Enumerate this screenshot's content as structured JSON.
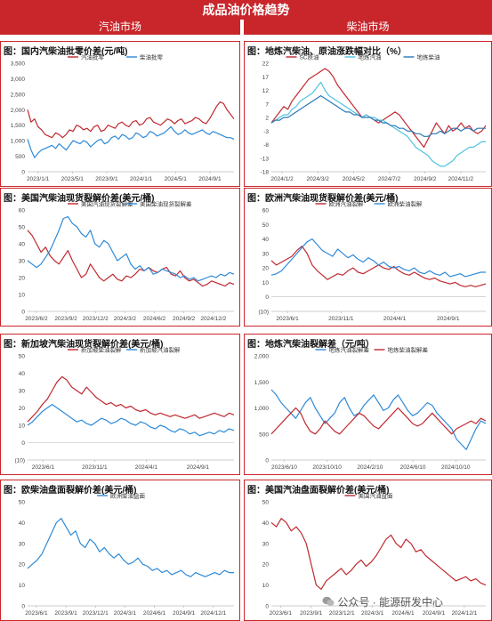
{
  "header": {
    "title": "成品油价格趋势",
    "left_section": "汽油市场",
    "right_section": "柴油市场"
  },
  "watermark": {
    "icon": "wechat-icon",
    "text": "公众号 · 能源研发中心"
  },
  "chart_data": [
    {
      "type": "line",
      "title": "图：国内汽柴油批零价差(元/吨)",
      "x_ticks": [
        "2023/1/1",
        "2023/5/1",
        "2023/9/1",
        "2024/1/1",
        "2024/5/1",
        "2024/9/1"
      ],
      "ylim": [
        0,
        3500
      ],
      "y_ticks": [
        0,
        500,
        1000,
        1500,
        2000,
        2500,
        3000,
        3500
      ],
      "y_tick_labels": [
        "0",
        "500",
        "1,000",
        "1,500",
        "2,000",
        "2,500",
        "3,000",
        "3,500"
      ],
      "legend": "top",
      "series": [
        {
          "name": "汽油批零",
          "color": "#c0282e",
          "values": [
            2000,
            1600,
            1700,
            1450,
            1350,
            1200,
            1150,
            1100,
            1250,
            1200,
            1100,
            1200,
            1350,
            1300,
            1500,
            1450,
            1350,
            1400,
            1300,
            1450,
            1500,
            1300,
            1350,
            1500,
            1450,
            1400,
            1550,
            1600,
            1500,
            1450,
            1600,
            1650,
            1500,
            1550,
            1700,
            1750,
            1600,
            1550,
            1500,
            1600,
            1700,
            1650,
            1550,
            1650,
            1700,
            1550,
            1600,
            1650,
            1750,
            1700,
            1600,
            1550,
            1700,
            1900,
            2100,
            2250,
            2200,
            2000,
            1850,
            1700
          ]
        },
        {
          "name": "柴油批零",
          "color": "#2e8ad8",
          "values": [
            1050,
            700,
            450,
            600,
            700,
            750,
            800,
            850,
            750,
            900,
            800,
            700,
            850,
            1000,
            950,
            900,
            1000,
            950,
            800,
            900,
            1000,
            1050,
            900,
            950,
            1100,
            1150,
            1050,
            1200,
            1150,
            1050,
            1100,
            1250,
            1200,
            1100,
            1150,
            1300,
            1250,
            1150,
            1200,
            1250,
            1350,
            1450,
            1300,
            1200,
            1250,
            1350,
            1250,
            1200,
            1250,
            1300,
            1350,
            1250,
            1200,
            1300,
            1250,
            1200,
            1150,
            1100,
            1100,
            1050
          ]
        }
      ]
    },
    {
      "type": "line",
      "title": "图：地炼汽柴油、原油涨跌幅对比（%）",
      "x_ticks": [
        "2024/1/2",
        "2024/3/2",
        "2024/5/2",
        "2024/7/2",
        "2024/9/2",
        "2024/11/2"
      ],
      "ylim": [
        -18,
        22
      ],
      "y_ticks": [
        -18,
        -13,
        -8,
        -3,
        2,
        7,
        12,
        17,
        22
      ],
      "y_tick_labels": [
        "-18",
        "-13",
        "-8",
        "-3",
        "2",
        "7",
        "12",
        "17",
        "22"
      ],
      "legend": "top",
      "series": [
        {
          "name": "SC原油",
          "color": "#c0282e",
          "values": [
            0,
            2,
            4,
            6,
            5,
            8,
            10,
            12,
            14,
            16,
            17,
            18,
            19,
            20,
            19,
            17,
            14,
            12,
            10,
            8,
            6,
            4,
            2,
            3,
            2,
            1,
            0,
            1,
            2,
            3,
            4,
            3,
            1,
            -1,
            -3,
            -5,
            -7,
            -9,
            -6,
            -3,
            0,
            -2,
            -4,
            -1,
            -3,
            -2,
            0,
            -2,
            -1,
            -3,
            -4,
            -3,
            -1
          ]
        },
        {
          "name": "地炼汽油",
          "color": "#4fc3e0",
          "values": [
            0,
            1,
            2,
            3,
            3,
            5,
            6,
            8,
            9,
            10,
            11,
            13,
            15,
            12,
            10,
            9,
            8,
            7,
            6,
            5,
            4,
            3,
            2,
            3,
            2,
            2,
            1,
            1,
            0,
            -1,
            -2,
            -3,
            -4,
            -5,
            -7,
            -9,
            -10,
            -11,
            -12,
            -14,
            -15,
            -16,
            -16,
            -15,
            -14,
            -12,
            -11,
            -10,
            -9,
            -9,
            -8,
            -7,
            -7
          ]
        },
        {
          "name": "地炼柴油",
          "color": "#2a78b8",
          "values": [
            0,
            1,
            1,
            2,
            2,
            3,
            4,
            5,
            6,
            7,
            8,
            9,
            10,
            9,
            8,
            7,
            6,
            5,
            4,
            4,
            3,
            3,
            2,
            2,
            2,
            1,
            1,
            0,
            0,
            -1,
            -1,
            -2,
            -2,
            -3,
            -3,
            -4,
            -4,
            -5,
            -5,
            -4,
            -4,
            -3,
            -4,
            -3,
            -2,
            -2,
            -3,
            -2,
            -2,
            -3,
            -2,
            -2,
            -2
          ]
        }
      ]
    },
    {
      "type": "line",
      "title": "图：美国汽柴油现货裂解价差(美元/桶)",
      "x_ticks": [
        "2023/6/2",
        "2023/9/2",
        "2023/12/2",
        "2024/3/2",
        "2024/6/2",
        "2024/9/2",
        "2024/12/2"
      ],
      "ylim": [
        0,
        60
      ],
      "y_ticks": [
        0,
        10,
        20,
        30,
        40,
        50,
        60
      ],
      "y_tick_labels": [
        "0",
        "10",
        "20",
        "30",
        "40",
        "50",
        "60"
      ],
      "legend": "top",
      "series": [
        {
          "name": "美国汽油现货裂解差",
          "color": "#c0282e",
          "values": [
            48,
            45,
            40,
            35,
            38,
            33,
            30,
            28,
            32,
            36,
            30,
            25,
            20,
            22,
            28,
            24,
            20,
            18,
            20,
            22,
            19,
            18,
            21,
            20,
            22,
            25,
            24,
            26,
            24,
            23,
            25,
            26,
            22,
            21,
            24,
            20,
            18,
            19,
            17,
            15,
            16,
            18,
            17,
            16,
            15,
            17,
            16
          ]
        },
        {
          "name": "美国柴油现货裂解差",
          "color": "#2e8ad8",
          "values": [
            30,
            28,
            26,
            28,
            32,
            36,
            42,
            48,
            55,
            56,
            52,
            50,
            46,
            44,
            48,
            40,
            38,
            42,
            40,
            35,
            30,
            32,
            34,
            28,
            25,
            27,
            24,
            26,
            22,
            23,
            25,
            24,
            23,
            22,
            20,
            21,
            19,
            20,
            18,
            19,
            20,
            21,
            20,
            22,
            21,
            23,
            22
          ]
        }
      ]
    },
    {
      "type": "line",
      "title": "图：欧洲汽柴油现货裂解价差(美元/桶)",
      "x_ticks": [
        "2023/6/1",
        "2023/11/1",
        "2024/4/1",
        "2024/9/1"
      ],
      "ylim": [
        -10,
        60
      ],
      "y_ticks": [
        -10,
        0,
        10,
        20,
        30,
        40,
        50,
        60
      ],
      "y_tick_labels": [
        "(10)",
        "0",
        "10",
        "20",
        "30",
        "40",
        "50",
        "60"
      ],
      "legend": "top",
      "series": [
        {
          "name": "欧洲汽油裂解",
          "color": "#c0282e",
          "values": [
            25,
            22,
            24,
            26,
            28,
            32,
            35,
            30,
            22,
            18,
            15,
            12,
            14,
            16,
            15,
            18,
            20,
            17,
            16,
            18,
            20,
            22,
            20,
            19,
            21,
            18,
            16,
            15,
            17,
            15,
            13,
            12,
            13,
            11,
            10,
            9,
            10,
            8,
            7,
            8,
            7,
            8,
            9
          ]
        },
        {
          "name": "欧洲柴油裂解",
          "color": "#2e8ad8",
          "values": [
            15,
            16,
            18,
            22,
            26,
            30,
            34,
            38,
            40,
            36,
            32,
            30,
            28,
            33,
            30,
            27,
            29,
            26,
            24,
            27,
            25,
            22,
            24,
            21,
            20,
            21,
            19,
            18,
            20,
            17,
            16,
            18,
            16,
            15,
            17,
            14,
            15,
            16,
            14,
            15,
            16,
            17,
            17
          ]
        }
      ]
    },
    {
      "type": "line",
      "title": "图：新加坡汽柴油现货裂解价差(美元/桶)",
      "x_ticks": [
        "2023/6/1",
        "2023/11/1",
        "2024/4/1",
        "2024/9/1"
      ],
      "ylim": [
        -10,
        50
      ],
      "y_ticks": [
        -10,
        0,
        10,
        20,
        30,
        40,
        50
      ],
      "y_tick_labels": [
        "(10)",
        "0",
        "10",
        "20",
        "30",
        "40",
        "50"
      ],
      "legend": "top",
      "series": [
        {
          "name": "新加坡柴油裂解",
          "color": "#c0282e",
          "values": [
            12,
            15,
            18,
            22,
            25,
            30,
            35,
            38,
            36,
            32,
            30,
            28,
            32,
            29,
            26,
            24,
            22,
            23,
            21,
            22,
            20,
            21,
            19,
            18,
            19,
            17,
            16,
            17,
            16,
            15,
            16,
            15,
            14,
            15,
            16,
            14,
            15,
            16,
            17,
            16,
            15,
            17,
            16
          ]
        },
        {
          "name": "新加坡汽油裂解",
          "color": "#2e8ad8",
          "values": [
            10,
            12,
            15,
            18,
            20,
            22,
            20,
            18,
            16,
            14,
            12,
            13,
            11,
            10,
            12,
            14,
            13,
            11,
            12,
            14,
            13,
            11,
            10,
            12,
            11,
            9,
            8,
            10,
            9,
            7,
            6,
            8,
            7,
            5,
            6,
            4,
            5,
            6,
            5,
            7,
            6,
            8,
            7
          ]
        }
      ]
    },
    {
      "type": "line",
      "title": "图：地炼汽柴油裂解差（元/吨）",
      "x_ticks": [
        "2023/6/10",
        "2023/10/10",
        "2024/2/10",
        "2024/6/10",
        "2024/10/10"
      ],
      "ylim": [
        0,
        2000
      ],
      "y_ticks": [
        0,
        500,
        1000,
        1500,
        2000
      ],
      "y_tick_labels": [
        "0",
        "500",
        "1,000",
        "1,500",
        "2,000"
      ],
      "legend": "top",
      "series": [
        {
          "name": "地炼汽油裂解差",
          "color": "#2e8ad8",
          "values": [
            1350,
            1250,
            1100,
            1000,
            900,
            800,
            950,
            1100,
            1200,
            1000,
            850,
            700,
            800,
            900,
            1100,
            1200,
            1000,
            850,
            900,
            1050,
            1150,
            1250,
            1100,
            950,
            1000,
            1150,
            1250,
            1100,
            950,
            850,
            900,
            1000,
            1100,
            1050,
            900,
            800,
            700,
            600,
            400,
            300,
            200,
            400,
            600,
            750,
            700
          ]
        },
        {
          "name": "地炼柴油裂解差",
          "color": "#c0282e",
          "values": [
            500,
            600,
            700,
            800,
            900,
            1000,
            900,
            700,
            550,
            500,
            600,
            750,
            650,
            550,
            500,
            600,
            700,
            800,
            900,
            850,
            750,
            650,
            600,
            700,
            800,
            900,
            1000,
            900,
            800,
            700,
            650,
            700,
            800,
            900,
            800,
            700,
            600,
            500,
            600,
            650,
            700,
            750,
            700,
            800,
            750
          ]
        }
      ]
    },
    {
      "type": "line",
      "title": "图：欧柴油盘面裂解价差(美元/桶)",
      "x_ticks": [
        "2023/6/1",
        "2023/9/1",
        "2023/12/1",
        "2024/3/1",
        "2024/6/1",
        "2024/9/1",
        "2024/12/1"
      ],
      "ylim": [
        0,
        50
      ],
      "y_ticks": [
        0,
        10,
        20,
        30,
        40,
        50
      ],
      "y_tick_labels": [
        "0",
        "10",
        "20",
        "30",
        "40",
        "50"
      ],
      "legend": "top",
      "series": [
        {
          "name": "欧洲柴油盘面",
          "color": "#2e8ad8",
          "values": [
            18,
            20,
            22,
            25,
            30,
            35,
            40,
            42,
            38,
            34,
            36,
            30,
            28,
            32,
            30,
            26,
            28,
            25,
            23,
            25,
            22,
            20,
            21,
            23,
            20,
            19,
            17,
            18,
            16,
            17,
            15,
            16,
            17,
            15,
            14,
            16,
            15,
            14,
            15,
            16,
            15,
            17,
            16,
            16
          ]
        }
      ]
    },
    {
      "type": "line",
      "title": "图：美国汽油盘面裂解价差(美元/桶)",
      "x_ticks": [
        "2023/6/1",
        "2023/9/1",
        "2023/12/1",
        "2024/3/1",
        "2024/6/1",
        "2024/9/1",
        "2024/12/1"
      ],
      "ylim": [
        0,
        50
      ],
      "y_ticks": [
        0,
        10,
        20,
        30,
        40,
        50
      ],
      "y_tick_labels": [
        "0",
        "10",
        "20",
        "30",
        "40",
        "50"
      ],
      "legend": "top",
      "series": [
        {
          "name": "美国汽油盘面",
          "color": "#c0282e",
          "values": [
            40,
            38,
            42,
            40,
            36,
            38,
            35,
            30,
            20,
            10,
            8,
            12,
            14,
            16,
            18,
            15,
            17,
            20,
            22,
            19,
            21,
            24,
            28,
            32,
            34,
            30,
            28,
            32,
            30,
            26,
            27,
            24,
            22,
            20,
            18,
            16,
            14,
            12,
            13,
            14,
            12,
            13,
            11,
            10
          ]
        }
      ]
    }
  ]
}
